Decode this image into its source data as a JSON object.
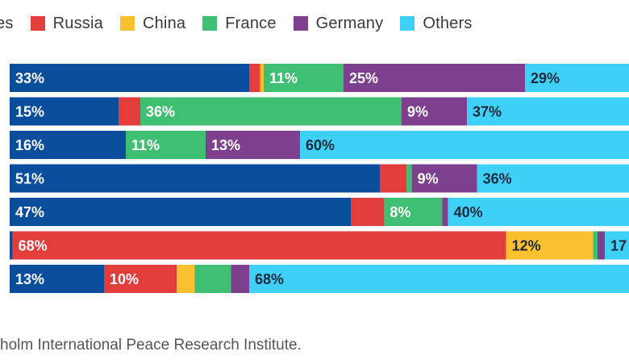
{
  "chart_data": {
    "type": "bar",
    "orientation": "horizontal",
    "stacked": true,
    "percent_stacked": true,
    "categories": [
      "",
      "",
      "",
      "",
      "",
      "",
      ""
    ],
    "series": [
      {
        "name": "United States",
        "color": "#0a4d9c",
        "values": [
          33,
          15,
          16,
          51,
          47,
          0.4,
          13
        ],
        "labels": [
          "33%",
          "15%",
          "16%",
          "51%",
          "47%",
          "",
          "13%"
        ]
      },
      {
        "name": "Russia",
        "color": "#e23d3a",
        "values": [
          1.5,
          3,
          0,
          3.7,
          4.6,
          68,
          10
        ],
        "labels": [
          "",
          "",
          "",
          "",
          "",
          "68%",
          "10%"
        ]
      },
      {
        "name": "China",
        "color": "#fbc02d",
        "values": [
          0.5,
          0,
          0,
          0,
          0,
          12,
          2.5
        ],
        "labels": [
          "",
          "",
          "",
          "",
          "",
          "12%",
          ""
        ]
      },
      {
        "name": "France",
        "color": "#3fbf72",
        "values": [
          11,
          36,
          11,
          0.7,
          8,
          0.6,
          5
        ],
        "labels": [
          "11%",
          "36%",
          "11%",
          "",
          "8%",
          "",
          ""
        ]
      },
      {
        "name": "Germany",
        "color": "#7e3f8e",
        "values": [
          25,
          9,
          13,
          9,
          0.8,
          1.0,
          2.5
        ],
        "labels": [
          "25%",
          "9%",
          "13%",
          "9%",
          "",
          "",
          ""
        ]
      },
      {
        "name": "Others",
        "color": "#3fd0f8",
        "values": [
          29,
          37,
          60,
          36,
          40,
          17,
          68
        ],
        "labels": [
          "29%",
          "37%",
          "60%",
          "36%",
          "40%",
          "17",
          "68%"
        ]
      }
    ],
    "xlim": [
      0,
      100
    ],
    "legend_position": "top",
    "grid": false
  },
  "legend": {
    "items": [
      {
        "label": "ates",
        "color": "#0a4d9c",
        "swatch": false
      },
      {
        "label": "Russia",
        "color": "#e23d3a",
        "swatch": true
      },
      {
        "label": "China",
        "color": "#fbc02d",
        "swatch": true
      },
      {
        "label": "France",
        "color": "#3fbf72",
        "swatch": true
      },
      {
        "label": "Germany",
        "color": "#7e3f8e",
        "swatch": true
      },
      {
        "label": "Others",
        "color": "#3fd0f8",
        "swatch": true
      }
    ]
  },
  "source_note": "ckholm International Peace Research Institute."
}
